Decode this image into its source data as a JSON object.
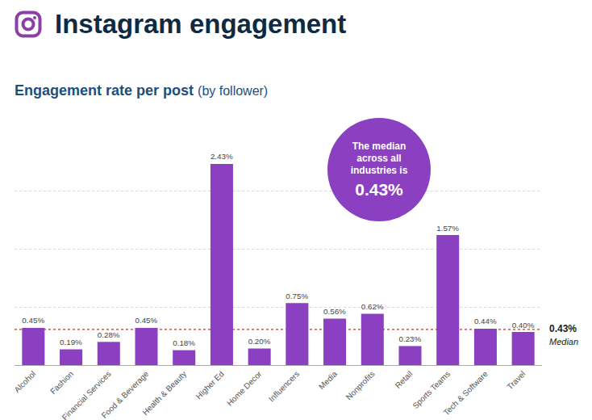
{
  "chart_data": {
    "type": "bar",
    "title": "Instagram engagement",
    "subtitle": "Engagement rate per post (by follower)",
    "categories": [
      "Alcohol",
      "Fashion",
      "Financial Services",
      "Food & Beverage",
      "Health & Beauty",
      "Higher Ed",
      "Home Decor",
      "Influencers",
      "Media",
      "Nonprofits",
      "Retail",
      "Sports Teams",
      "Tech & Software",
      "Travel"
    ],
    "values": [
      0.45,
      0.19,
      0.28,
      0.45,
      0.18,
      2.43,
      0.2,
      0.75,
      0.56,
      0.62,
      0.23,
      1.57,
      0.44,
      0.4
    ],
    "value_labels": [
      "0.45%",
      "0.19%",
      "0.28%",
      "0.45%",
      "0.18%",
      "2.43%",
      "0.20%",
      "0.75%",
      "0.56%",
      "0.62%",
      "0.23%",
      "1.57%",
      "0.44%",
      "0.40%"
    ],
    "color": "#8b3fc1",
    "ylim": [
      0,
      2.8
    ],
    "yticks": [
      0,
      0.7,
      1.4,
      2.1,
      2.8
    ],
    "grid": true,
    "data_labels": true,
    "tick_labels": "x",
    "reference_line": {
      "value": 0.43,
      "label": "0.43%",
      "text": "Median"
    },
    "callout": {
      "text": "The median across all industries is",
      "value": 0.43,
      "label": "0.43%"
    }
  }
}
